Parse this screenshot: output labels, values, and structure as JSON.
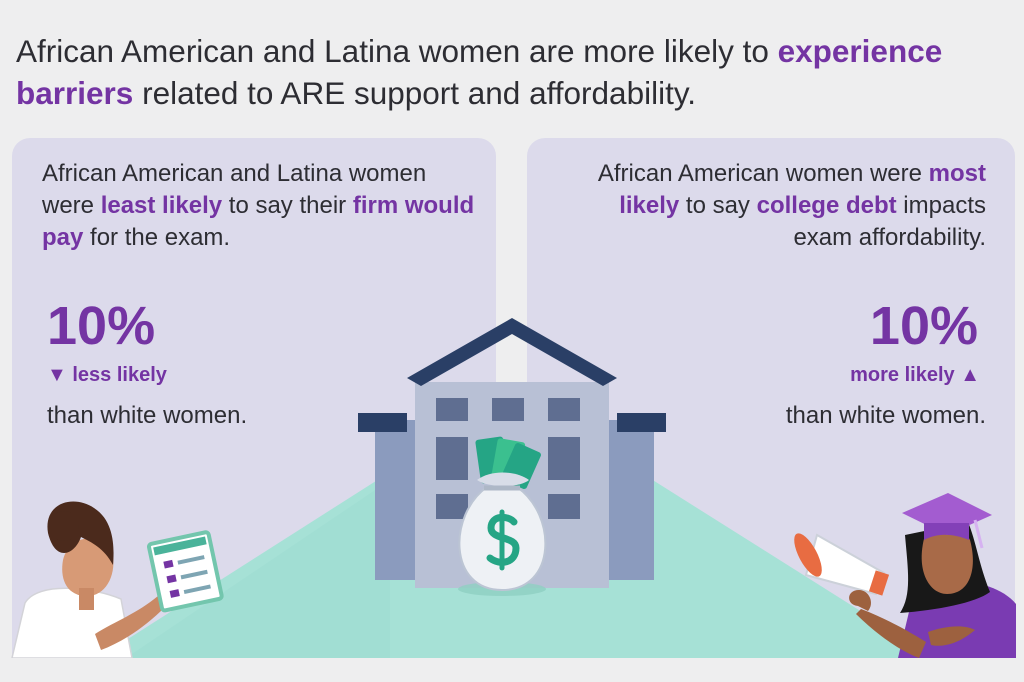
{
  "headline": {
    "text_1": "African American and Latina women are more likely to ",
    "emphasis_1": "experience barriers",
    "text_2": " related to ARE support and affordability."
  },
  "left_panel": {
    "copy_1": "African American and Latina women were ",
    "emphasis_1": "least likely",
    "copy_2": " to say their ",
    "emphasis_2": "firm would pay",
    "copy_3": " for the exam.",
    "stat": "10%",
    "delta": "▼ less likely",
    "comparison": "than white women."
  },
  "right_panel": {
    "copy_1": "African American women were ",
    "emphasis_1": "most likely",
    "copy_2": " to say ",
    "emphasis_2": "college debt",
    "copy_3": " impacts exam affordability.",
    "stat": "10%",
    "delta": "more likely ▲",
    "comparison": "than white women."
  },
  "colors": {
    "background": "#eeeeef",
    "panel": "#dcdaeb",
    "accent": "#7434a3",
    "text": "#2d2d33",
    "building_dark": "#2a3f66",
    "building_light": "#b8c0d5",
    "floor": "#a6e1d6",
    "money_green": "#25a585"
  },
  "icons": {
    "scene": "university-building-icon",
    "money": "money-bag-icon",
    "left_person": "woman-with-checklist-icon",
    "right_person": "graduate-with-megaphone-icon"
  }
}
